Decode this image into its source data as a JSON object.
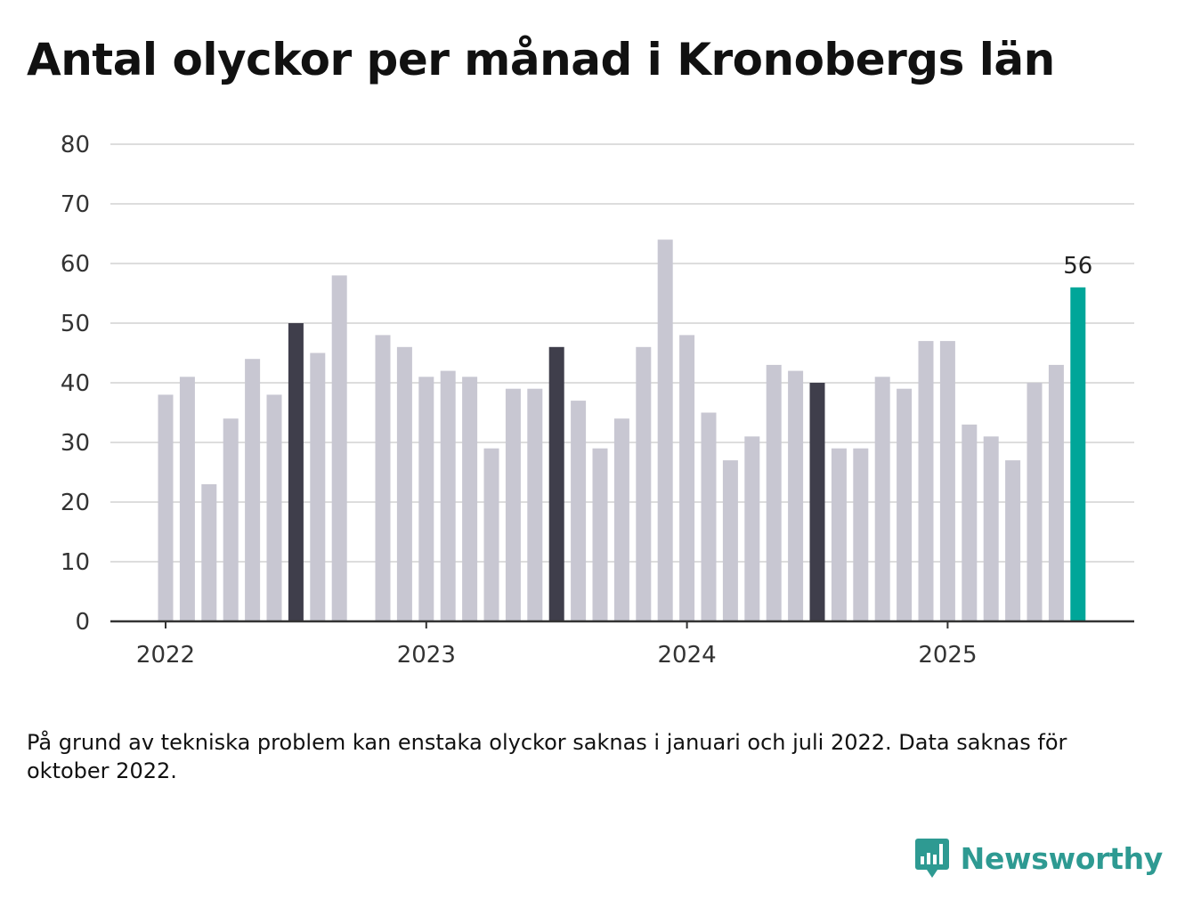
{
  "title": "Antal olyckor per månad i Kronobergs län",
  "note": "På grund av tekniska problem kan enstaka olyckor saknas i januari och juli 2022. Data saknas för oktober 2022.",
  "brand": {
    "name": "Newsworthy",
    "logo_icon": "newsworthy-logo-icon"
  },
  "colors": {
    "bar": "#c8c7d2",
    "highlight": "#3f3e4b",
    "latest": "#00a699",
    "grid": "#dddddd",
    "axis": "#333333",
    "brand": "#2e9a92"
  },
  "chart_data": {
    "type": "bar",
    "title": "Antal olyckor per månad i Kronobergs län",
    "xlabel": "",
    "ylabel": "",
    "ylim": [
      0,
      80
    ],
    "yticks": [
      0,
      10,
      20,
      30,
      40,
      50,
      60,
      70,
      80
    ],
    "xtick_labels": [
      "2022",
      "2023",
      "2024",
      "2025"
    ],
    "grid": "horizontal",
    "legend": "none",
    "categories": [
      "2022-01",
      "2022-02",
      "2022-03",
      "2022-04",
      "2022-05",
      "2022-06",
      "2022-07",
      "2022-08",
      "2022-09",
      "2022-10",
      "2022-11",
      "2022-12",
      "2023-01",
      "2023-02",
      "2023-03",
      "2023-04",
      "2023-05",
      "2023-06",
      "2023-07",
      "2023-08",
      "2023-09",
      "2023-10",
      "2023-11",
      "2023-12",
      "2024-01",
      "2024-02",
      "2024-03",
      "2024-04",
      "2024-05",
      "2024-06",
      "2024-07",
      "2024-08",
      "2024-09",
      "2024-10",
      "2024-11",
      "2024-12",
      "2025-01",
      "2025-02",
      "2025-03",
      "2025-04",
      "2025-05",
      "2025-06",
      "2025-07"
    ],
    "values": [
      38,
      41,
      23,
      34,
      44,
      38,
      50,
      45,
      58,
      null,
      48,
      46,
      41,
      42,
      41,
      29,
      39,
      39,
      46,
      37,
      29,
      34,
      46,
      64,
      48,
      35,
      27,
      31,
      43,
      42,
      40,
      29,
      29,
      41,
      39,
      47,
      47,
      33,
      31,
      27,
      40,
      43,
      56
    ],
    "highlighted_months": [
      "2022-07",
      "2023-07",
      "2024-07"
    ],
    "latest_label": "56"
  }
}
